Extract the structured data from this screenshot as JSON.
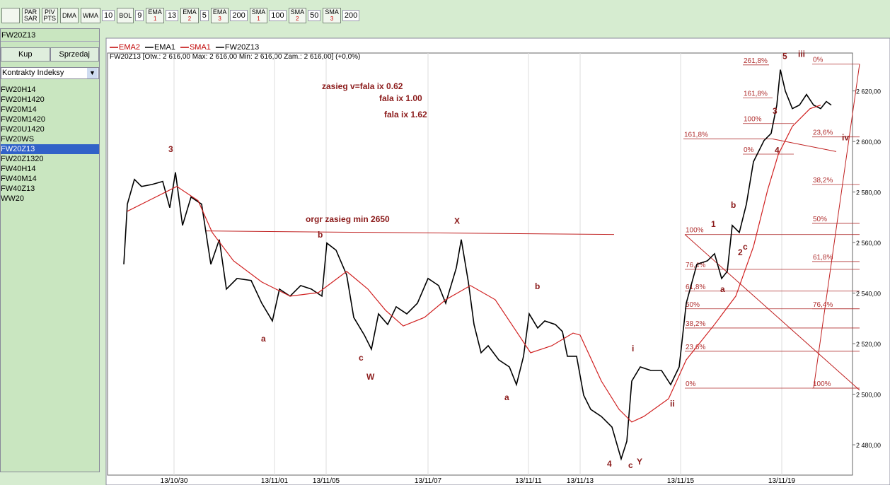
{
  "toolbar": {
    "buttons": [
      {
        "label": "PAR",
        "sub": "SAR"
      },
      {
        "label": "PIV",
        "sub": "PTS"
      },
      {
        "label": "DMA"
      },
      {
        "label": "WMA",
        "param": 10
      },
      {
        "label": "BOL",
        "param": 9
      },
      {
        "label": "EMA",
        "num": "1",
        "param": 13
      },
      {
        "label": "EMA",
        "num": "2",
        "param": 5
      },
      {
        "label": "EMA",
        "num": "3",
        "param": 200
      },
      {
        "label": "SMA",
        "num": "1",
        "param": 100
      },
      {
        "label": "SMA",
        "num": "2",
        "param": 50
      },
      {
        "label": "SMA",
        "num": "3",
        "param": 200
      }
    ]
  },
  "sidebar": {
    "symbol": "FW20Z13",
    "buy": "Kup",
    "sell": "Sprzedaj",
    "dropdown": "Kontrakty Indeksy",
    "items": [
      "FW20H14",
      "FW20H1420",
      "FW20M14",
      "FW20M1420",
      "FW20U1420",
      "FW20WS",
      "FW20Z13",
      "FW20Z1320",
      "FW40H14",
      "FW40M14",
      "FW40Z13",
      "WW20"
    ],
    "selected": "FW20Z13"
  },
  "chart_data": {
    "type": "line",
    "header": "FW20Z13 [Otw.: 2 616,00   Max: 2 616,00   Min: 2 616,00   Zam.: 2 616,00] (+0,0%)",
    "legend": [
      {
        "name": "EMA2",
        "color": "#c00000"
      },
      {
        "name": "EMA1",
        "color": "#000000"
      },
      {
        "name": "SMA1",
        "color": "#c00000"
      },
      {
        "name": "FW20Z13",
        "color": "#000000"
      }
    ],
    "xlim": [
      0,
      105.3
    ],
    "ylim": [
      2468,
      2635
    ],
    "xticks": [
      {
        "value": 9.4,
        "label": "13/10/30"
      },
      {
        "value": 23.6,
        "label": "13/11/01"
      },
      {
        "value": 30.9,
        "label": "13/11/05"
      },
      {
        "value": 45.3,
        "label": "13/11/07"
      },
      {
        "value": 59.5,
        "label": "13/11/11"
      },
      {
        "value": 66.8,
        "label": "13/11/13"
      },
      {
        "value": 81,
        "label": "13/11/15"
      },
      {
        "value": 95.3,
        "label": "13/11/19"
      }
    ],
    "yticks": [
      {
        "value": 2480,
        "label": "2 480,00"
      },
      {
        "value": 2500,
        "label": "2 500,00"
      },
      {
        "value": 2520,
        "label": "2 520,00"
      },
      {
        "value": 2540,
        "label": "2 540,00"
      },
      {
        "value": 2560,
        "label": "2 560,00"
      },
      {
        "value": 2580,
        "label": "2 580,00"
      },
      {
        "value": 2600,
        "label": "2 600,00"
      },
      {
        "value": 2620,
        "label": "2 620,00"
      }
    ],
    "series": [
      {
        "name": "FW20Z13",
        "color": "#000000",
        "x": [
          2.3,
          2.8,
          3.8,
          4.8,
          6.3,
          7.8,
          8.8,
          9.6,
          10.6,
          11.8,
          13.3,
          14.6,
          15.8,
          16.8,
          18.3,
          20.3,
          21.8,
          23.3,
          24.3,
          25.8,
          27.3,
          28.8,
          30.3,
          31,
          32.3,
          33.8,
          34.8,
          36.3,
          37.3,
          38.3,
          39.6,
          40.8,
          42.3,
          43.8,
          45.3,
          46.8,
          47.8,
          49.3,
          50,
          51,
          51.8,
          52.8,
          53.8,
          55.3,
          56.8,
          57.8,
          58.8,
          59.6,
          60.8,
          61.8,
          63.3,
          64.3,
          65,
          66.3,
          67.3,
          68.3,
          69.8,
          71.3,
          72.6,
          73.4,
          74.1,
          75.3,
          76.8,
          78.3,
          79.6,
          80.8,
          81.8,
          83.3,
          84.8,
          85.8,
          86.8,
          87.6,
          88.3,
          89.3,
          90.3,
          91.3,
          92.8,
          93.8,
          94.6,
          95.1,
          95.8,
          96.8,
          97.8,
          98.8,
          99.8,
          100.8,
          101.6,
          102.3
        ],
        "values": [
          2551.4,
          2575.2,
          2585,
          2582.2,
          2583,
          2584.2,
          2573.8,
          2587.8,
          2566.8,
          2578,
          2575.2,
          2551.4,
          2561.2,
          2541.6,
          2545.8,
          2545,
          2536,
          2529,
          2541.6,
          2538.8,
          2543,
          2541.6,
          2538.8,
          2559.8,
          2557,
          2547.2,
          2530.4,
          2523.4,
          2517.8,
          2531.8,
          2527.6,
          2534.6,
          2531.8,
          2536,
          2545.8,
          2543,
          2536,
          2550,
          2561.2,
          2544.4,
          2527.6,
          2516.4,
          2519.2,
          2513.6,
          2510.8,
          2503.8,
          2515,
          2531.8,
          2526.2,
          2529,
          2527.6,
          2524.8,
          2515,
          2515,
          2499.6,
          2494,
          2491.2,
          2487,
          2474.4,
          2481.4,
          2505.2,
          2510.8,
          2509.4,
          2509.4,
          2503.8,
          2510.8,
          2536,
          2551.4,
          2552.8,
          2555.6,
          2545.8,
          2548.6,
          2566.8,
          2564,
          2575.2,
          2592,
          2600.4,
          2603.2,
          2614.4,
          2628.4,
          2620,
          2613,
          2614.4,
          2618.6,
          2614.4,
          2613,
          2615.8,
          2614.4
        ]
      },
      {
        "name": "SMA1",
        "color": "#d02020",
        "x": [
          2.8,
          5.8,
          9.8,
          12.8,
          14.8,
          17.8,
          21.8,
          25.8,
          29.8,
          33.8,
          36.8,
          39.3,
          41.8,
          44.8,
          47.8,
          51.3,
          54.8,
          57.8,
          59.8,
          62.8,
          65.8,
          66.8,
          69.8,
          72.3,
          74.1,
          75.8,
          79.3,
          81.8,
          85.8,
          88.8,
          91.3,
          93.3,
          94.8,
          96.8,
          99.3,
          100.8
        ],
        "values": [
          2572.4,
          2576.6,
          2582.2,
          2576.6,
          2564,
          2552.8,
          2544.4,
          2538.8,
          2540.2,
          2548.6,
          2541.6,
          2533.2,
          2527,
          2530.4,
          2537.4,
          2543,
          2537.4,
          2524.8,
          2516.4,
          2519.2,
          2524.2,
          2523.4,
          2505.2,
          2494,
          2489,
          2491.2,
          2498.2,
          2513.6,
          2527.6,
          2538.8,
          2558.4,
          2580.8,
          2594.8,
          2606,
          2613,
          2614.4
        ]
      }
    ],
    "fib_levels": [
      {
        "label": "100%",
        "y": 2563.2,
        "x0": 81.6,
        "x1": 106.3
      },
      {
        "label": "76,4%",
        "y": 2549.4,
        "x0": 81.6,
        "x1": 106.3
      },
      {
        "label": "61,8%",
        "y": 2540.8,
        "x0": 81.6,
        "x1": 106.3
      },
      {
        "label": "50%",
        "y": 2533.8,
        "x0": 81.6,
        "x1": 106.3
      },
      {
        "label": "38,2%",
        "y": 2526.2,
        "x0": 81.6,
        "x1": 106.3
      },
      {
        "label": "23,6%",
        "y": 2517,
        "x0": 81.6,
        "x1": 106.3
      },
      {
        "label": "0%",
        "y": 2502.4,
        "x0": 81.6,
        "x1": 106.3
      },
      {
        "label": "0%",
        "y": 2630.6,
        "x0": 99.6,
        "x1": 106.3
      },
      {
        "label": "23,6%",
        "y": 2601.8,
        "x0": 99.6,
        "x1": 106.3
      },
      {
        "label": "38,2%",
        "y": 2583,
        "x0": 99.6,
        "x1": 106.3
      },
      {
        "label": "50%",
        "y": 2567.6,
        "x0": 99.6,
        "x1": 106.3
      },
      {
        "label": "61,8%",
        "y": 2552.5,
        "x0": 99.6,
        "x1": 106.3
      },
      {
        "label": "76,4%",
        "y": 2533.8,
        "x0": 99.6,
        "x1": 106.3
      },
      {
        "label": "100%",
        "y": 2502.4,
        "x0": 99.6,
        "x1": 106.3
      },
      {
        "label": "261,8%",
        "y": 2630.3,
        "x0": 89.8,
        "x1": 93.5
      },
      {
        "label": "161,8%",
        "y": 2617.2,
        "x0": 89.8,
        "x1": 94
      },
      {
        "label": "100%",
        "y": 2607.1,
        "x0": 89.8,
        "x1": 97
      },
      {
        "label": "0%",
        "y": 2595,
        "x0": 89.8,
        "x1": 97
      },
      {
        "label": "161,8%",
        "y": 2601,
        "x0": 81.4,
        "x1": 94
      }
    ],
    "trend_lines": [
      {
        "x": [
          13.8,
          71.6
        ],
        "y": [
          2564.6,
          2563.2
        ]
      },
      {
        "x": [
          81.6,
          106.3
        ],
        "y": [
          2563.2,
          2501.6
        ]
      },
      {
        "x": [
          99.8,
          106.3
        ],
        "y": [
          2502.4,
          2630.6
        ]
      },
      {
        "x": [
          94,
          103
        ],
        "y": [
          2601,
          2596
        ]
      }
    ],
    "annotations": [
      {
        "text": "zasieg  v=fala ix 0.62",
        "x": 30.3,
        "y": 2620.8
      },
      {
        "text": "fala ix 1.00",
        "x": 38.4,
        "y": 2616
      },
      {
        "text": "fala ix 1.62",
        "x": 39.1,
        "y": 2609.6
      },
      {
        "text": "orgr zasieg min 2650",
        "x": 28,
        "y": 2568.2
      },
      {
        "text": "3",
        "x": 8.6,
        "y": 2595.9
      },
      {
        "text": "b",
        "x": 29.7,
        "y": 2562
      },
      {
        "text": "a",
        "x": 21.7,
        "y": 2520.9
      },
      {
        "text": "c",
        "x": 35.5,
        "y": 2513.3
      },
      {
        "text": "W",
        "x": 36.6,
        "y": 2505.8
      },
      {
        "text": "X",
        "x": 49,
        "y": 2567.4
      },
      {
        "text": "b",
        "x": 60.4,
        "y": 2541.6
      },
      {
        "text": "a",
        "x": 56.1,
        "y": 2497.6
      },
      {
        "text": "i",
        "x": 74.1,
        "y": 2517
      },
      {
        "text": "ii",
        "x": 79.5,
        "y": 2495.1
      },
      {
        "text": "4",
        "x": 70.6,
        "y": 2471.3
      },
      {
        "text": "c",
        "x": 73.6,
        "y": 2470.8
      },
      {
        "text": "Y",
        "x": 74.8,
        "y": 2472.2
      },
      {
        "text": "1",
        "x": 85.3,
        "y": 2566.2
      },
      {
        "text": "b",
        "x": 88.1,
        "y": 2573.8
      },
      {
        "text": "2",
        "x": 89.1,
        "y": 2555
      },
      {
        "text": "c",
        "x": 89.8,
        "y": 2557.3
      },
      {
        "text": "a",
        "x": 86.6,
        "y": 2540.5
      },
      {
        "text": "3",
        "x": 94,
        "y": 2611
      },
      {
        "text": "4",
        "x": 94.3,
        "y": 2595.4
      },
      {
        "text": "5",
        "x": 95.4,
        "y": 2632.6
      },
      {
        "text": "iii",
        "x": 97.6,
        "y": 2633.4
      },
      {
        "text": "iv",
        "x": 103.8,
        "y": 2600.4
      }
    ]
  }
}
